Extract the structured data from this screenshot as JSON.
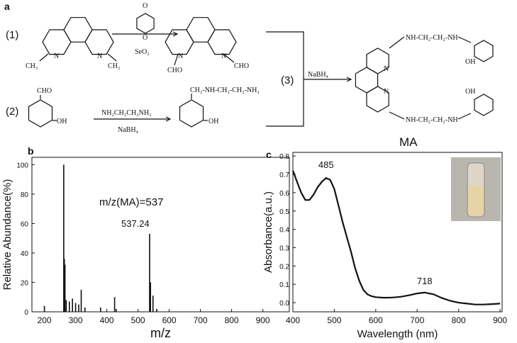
{
  "panel_a": {
    "texts": [
      "a",
      "(1)",
      "(2)",
      "(3)",
      "CH₃",
      "CH₃",
      "N",
      "N",
      "O",
      "O",
      "SeO₂",
      "N",
      "N",
      "CHO",
      "CHO",
      "CHO",
      "OH",
      "NH₂CH₂CH₂NH₂",
      "NaBH₄",
      "CH₂-NH-CH₂-CH₂-NH₂",
      "OH",
      "NaBH₄",
      "N",
      "N",
      "NH-CH₂-CH₂-NH",
      "NH-CH₂-CH₂-NH",
      "OH",
      "OH",
      "MA"
    ]
  },
  "chart_data": [
    {
      "type": "stem",
      "panel_label": "b",
      "x_label": "m/z",
      "y_label": "Relative Abundance(%)",
      "annotations": [
        "m/z(MA)=537",
        "537.24"
      ],
      "x": [
        200,
        262,
        264,
        266,
        270,
        280,
        290,
        300,
        310,
        318,
        330,
        380,
        425,
        430,
        537.24,
        540,
        548,
        560
      ],
      "values": [
        4,
        100,
        36,
        32,
        8,
        7,
        9,
        6,
        5,
        15,
        3,
        3,
        10,
        2,
        53,
        20,
        11,
        2
      ],
      "color": "#111111",
      "xlim": [
        160,
        985
      ],
      "xticks": [
        200,
        300,
        400,
        500,
        600,
        700,
        800,
        900
      ],
      "ylim": [
        0,
        105
      ],
      "yticks": [
        0,
        20,
        40,
        60,
        80,
        100
      ]
    },
    {
      "type": "line",
      "panel_label": "c",
      "x_label": "Wavelength (nm)",
      "y_label": "Absorbance(a.u.)",
      "annotations": [
        "485",
        "718"
      ],
      "x": [
        400,
        410,
        420,
        430,
        440,
        450,
        460,
        470,
        480,
        490,
        500,
        510,
        520,
        530,
        540,
        550,
        560,
        570,
        580,
        590,
        600,
        620,
        640,
        660,
        680,
        700,
        718,
        740,
        760,
        780,
        800,
        820,
        840,
        860,
        880,
        900
      ],
      "values": [
        0.72,
        0.66,
        0.6,
        0.56,
        0.56,
        0.59,
        0.63,
        0.66,
        0.68,
        0.67,
        0.62,
        0.53,
        0.44,
        0.36,
        0.28,
        0.19,
        0.12,
        0.07,
        0.045,
        0.035,
        0.03,
        0.027,
        0.028,
        0.032,
        0.04,
        0.05,
        0.055,
        0.045,
        0.025,
        0.01,
        0.0,
        -0.005,
        -0.01,
        -0.01,
        -0.008,
        -0.005
      ],
      "color": "#111111",
      "xlim": [
        400,
        905
      ],
      "xticks": [
        400,
        500,
        600,
        700,
        800,
        900
      ],
      "ylim": [
        -0.05,
        0.82
      ],
      "yticks": [
        {
          "value": 0,
          "label": "0.0"
        },
        0.1,
        0.2,
        0.3,
        0.4,
        0.5,
        0.6,
        0.7,
        0.8
      ]
    }
  ]
}
